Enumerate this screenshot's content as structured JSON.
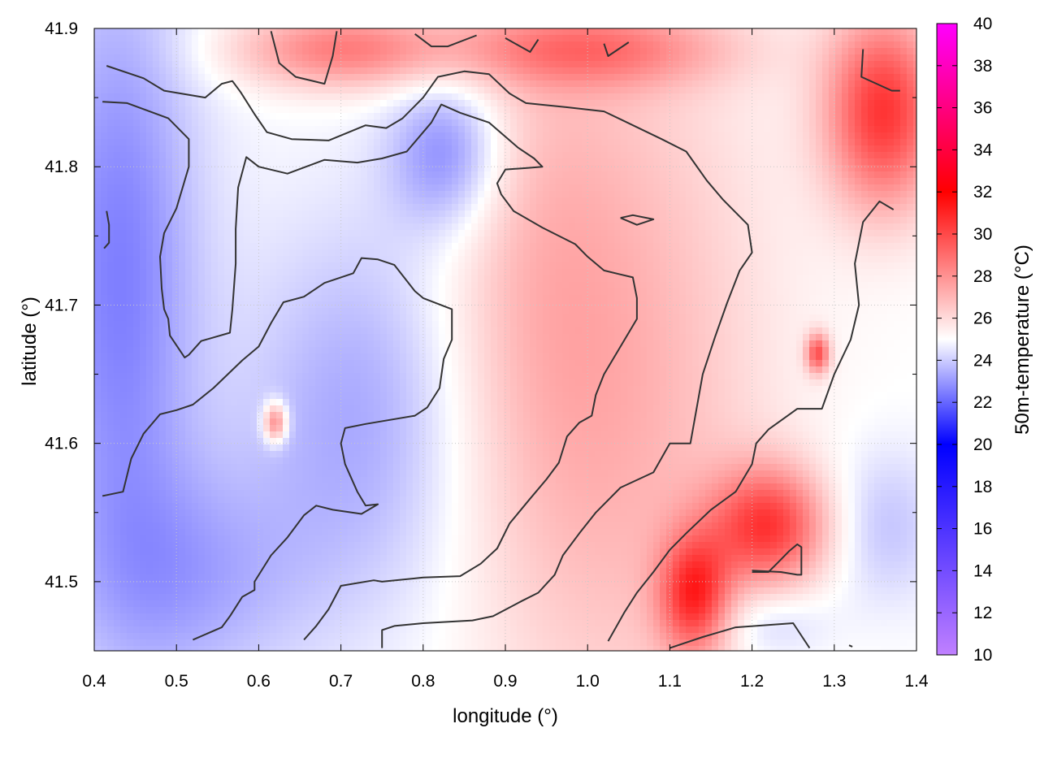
{
  "chart_data": {
    "type": "heatmap",
    "xlabel": "longitude (°)",
    "ylabel": "latitude (°)",
    "colorbar_label": "50m-temperature (°C)",
    "xlim": [
      0.4,
      1.4
    ],
    "ylim": [
      41.45,
      41.9
    ],
    "x_ticks": [
      0.4,
      0.5,
      0.6,
      0.7,
      0.8,
      0.9,
      1.0,
      1.1,
      1.2,
      1.3,
      1.4
    ],
    "x_tick_labels": [
      "0.4",
      "0.5",
      "0.6",
      "0.7",
      "0.8",
      "0.9",
      "1.0",
      "1.1",
      "1.2",
      "1.3",
      "1.4"
    ],
    "y_ticks": [
      41.5,
      41.6,
      41.7,
      41.8,
      41.9
    ],
    "y_tick_labels": [
      "41.5",
      "41.6",
      "41.7",
      "41.8",
      "41.9"
    ],
    "colorbar_range": [
      10,
      40
    ],
    "colorbar_ticks": [
      10,
      12,
      14,
      16,
      18,
      20,
      22,
      24,
      26,
      28,
      30,
      32,
      34,
      36,
      38,
      40
    ],
    "colorbar_tick_labels": [
      "10",
      "12",
      "14",
      "16",
      "18",
      "20",
      "22",
      "24",
      "26",
      "28",
      "30",
      "32",
      "34",
      "36",
      "38",
      "40"
    ],
    "colormap": [
      {
        "t": 10,
        "color": "#c080ff"
      },
      {
        "t": 20,
        "color": "#0000ff"
      },
      {
        "t": 25,
        "color": "#ffffff"
      },
      {
        "t": 32,
        "color": "#ff0000"
      },
      {
        "t": 40,
        "color": "#ff00ff"
      }
    ],
    "grid": true,
    "grid_color": "#c8c8c8",
    "contour_color": "#333333",
    "temperature_regions": [
      {
        "name": "west-cool",
        "lon": 0.43,
        "lat": 41.72,
        "t": 22.5,
        "sx": 0.07,
        "sy": 0.17
      },
      {
        "name": "center-cool",
        "lon": 0.72,
        "lat": 41.62,
        "t": 23.3,
        "sx": 0.1,
        "sy": 0.1
      },
      {
        "name": "north-cool",
        "lon": 0.83,
        "lat": 41.81,
        "t": 22.5,
        "sx": 0.05,
        "sy": 0.04
      },
      {
        "name": "southwest-cool",
        "lon": 0.52,
        "lat": 41.5,
        "t": 23.5,
        "sx": 0.1,
        "sy": 0.06
      },
      {
        "name": "east-band-warm",
        "lon": 1.05,
        "lat": 41.64,
        "t": 27.0,
        "sx": 0.12,
        "sy": 0.2
      },
      {
        "name": "mid-warm",
        "lon": 0.93,
        "lat": 41.72,
        "t": 26.2,
        "sx": 0.08,
        "sy": 0.15
      },
      {
        "name": "northeast-hot",
        "lon": 1.36,
        "lat": 41.84,
        "t": 30.5,
        "sx": 0.05,
        "sy": 0.05
      },
      {
        "name": "north-top-warm",
        "lon": 0.7,
        "lat": 41.885,
        "t": 28.5,
        "sx": 0.09,
        "sy": 0.02
      },
      {
        "name": "north-top-warm-2",
        "lon": 1.0,
        "lat": 41.885,
        "t": 28.0,
        "sx": 0.12,
        "sy": 0.02
      },
      {
        "name": "southeast-hot",
        "lon": 1.22,
        "lat": 41.54,
        "t": 30.0,
        "sx": 0.05,
        "sy": 0.03
      },
      {
        "name": "south-hot",
        "lon": 1.13,
        "lat": 41.49,
        "t": 30.0,
        "sx": 0.03,
        "sy": 0.03
      },
      {
        "name": "east-cool",
        "lon": 1.36,
        "lat": 41.54,
        "t": 23.8,
        "sx": 0.05,
        "sy": 0.04
      },
      {
        "name": "se-cool",
        "lon": 1.22,
        "lat": 41.47,
        "t": 23.8,
        "sx": 0.05,
        "sy": 0.02
      },
      {
        "name": "spot-warm",
        "lon": 0.62,
        "lat": 41.615,
        "t": 29.0,
        "sx": 0.01,
        "sy": 0.01
      },
      {
        "name": "spot-warm-2",
        "lon": 1.28,
        "lat": 41.665,
        "t": 29.5,
        "sx": 0.01,
        "sy": 0.01
      }
    ],
    "contours": [
      [
        [
          0.415,
          41.873
        ],
        [
          0.46,
          41.864
        ],
        [
          0.485,
          41.855
        ],
        [
          0.535,
          41.85
        ],
        [
          0.555,
          41.86
        ],
        [
          0.568,
          41.862
        ],
        [
          0.578,
          41.854
        ],
        [
          0.595,
          41.838
        ],
        [
          0.61,
          41.825
        ],
        [
          0.64,
          41.82
        ],
        [
          0.685,
          41.819
        ],
        [
          0.73,
          41.83
        ],
        [
          0.755,
          41.828
        ],
        [
          0.775,
          41.835
        ],
        [
          0.8,
          41.85
        ],
        [
          0.818,
          41.865
        ],
        [
          0.85,
          41.869
        ],
        [
          0.88,
          41.867
        ],
        [
          0.905,
          41.853
        ],
        [
          0.925,
          41.846
        ],
        [
          0.975,
          41.843
        ],
        [
          1.02,
          41.84
        ],
        [
          1.09,
          41.82
        ],
        [
          1.12,
          41.811
        ],
        [
          1.145,
          41.79
        ],
        [
          1.165,
          41.776
        ],
        [
          1.195,
          41.758
        ],
        [
          1.2,
          41.738
        ],
        [
          1.185,
          41.725
        ],
        [
          1.17,
          41.702
        ],
        [
          1.155,
          41.677
        ],
        [
          1.14,
          41.65
        ],
        [
          1.125,
          41.6
        ],
        [
          1.1,
          41.6
        ],
        [
          1.08,
          41.579
        ],
        [
          1.04,
          41.568
        ],
        [
          1.01,
          41.55
        ],
        [
          0.99,
          41.535
        ],
        [
          0.97,
          41.519
        ],
        [
          0.96,
          41.505
        ],
        [
          0.94,
          41.492
        ],
        [
          0.92,
          41.486
        ],
        [
          0.885,
          41.475
        ],
        [
          0.86,
          41.472
        ],
        [
          0.8,
          41.47
        ],
        [
          0.765,
          41.468
        ],
        [
          0.75,
          41.465
        ],
        [
          0.75,
          41.452
        ]
      ],
      [
        [
          0.41,
          41.847
        ],
        [
          0.44,
          41.846
        ],
        [
          0.49,
          41.835
        ],
        [
          0.515,
          41.82
        ],
        [
          0.515,
          41.8
        ],
        [
          0.5,
          41.77
        ],
        [
          0.485,
          41.752
        ],
        [
          0.48,
          41.735
        ],
        [
          0.482,
          41.712
        ],
        [
          0.485,
          41.697
        ],
        [
          0.49,
          41.69
        ],
        [
          0.492,
          41.678
        ],
        [
          0.51,
          41.662
        ],
        [
          0.515,
          41.664
        ],
        [
          0.53,
          41.674
        ],
        [
          0.565,
          41.68
        ],
        [
          0.568,
          41.697
        ],
        [
          0.572,
          41.73
        ],
        [
          0.572,
          41.755
        ],
        [
          0.575,
          41.785
        ],
        [
          0.585,
          41.807
        ],
        [
          0.6,
          41.8
        ],
        [
          0.635,
          41.795
        ],
        [
          0.68,
          41.805
        ],
        [
          0.72,
          41.803
        ],
        [
          0.75,
          41.806
        ],
        [
          0.78,
          41.811
        ],
        [
          0.81,
          41.832
        ],
        [
          0.822,
          41.845
        ],
        [
          0.845,
          41.839
        ],
        [
          0.88,
          41.832
        ],
        [
          0.915,
          41.814
        ],
        [
          0.935,
          41.806
        ],
        [
          0.945,
          41.8
        ],
        [
          0.925,
          41.799
        ],
        [
          0.9,
          41.798
        ],
        [
          0.89,
          41.788
        ],
        [
          0.895,
          41.78
        ],
        [
          0.91,
          41.768
        ],
        [
          0.945,
          41.756
        ],
        [
          0.985,
          41.744
        ],
        [
          1.0,
          41.735
        ],
        [
          1.02,
          41.725
        ],
        [
          1.055,
          41.72
        ],
        [
          1.06,
          41.705
        ],
        [
          1.06,
          41.69
        ],
        [
          1.04,
          41.67
        ],
        [
          1.02,
          41.65
        ],
        [
          1.01,
          41.635
        ],
        [
          1.005,
          41.62
        ],
        [
          0.99,
          41.615
        ],
        [
          0.975,
          41.605
        ],
        [
          0.965,
          41.586
        ],
        [
          0.95,
          41.574
        ],
        [
          0.93,
          41.56
        ],
        [
          0.905,
          41.542
        ],
        [
          0.89,
          41.524
        ],
        [
          0.87,
          41.513
        ],
        [
          0.845,
          41.504
        ],
        [
          0.8,
          41.503
        ],
        [
          0.75,
          41.5
        ],
        [
          0.74,
          41.501
        ],
        [
          0.7,
          41.497
        ],
        [
          0.685,
          41.48
        ],
        [
          0.67,
          41.468
        ],
        [
          0.655,
          41.458
        ]
      ],
      [
        [
          0.41,
          41.562
        ],
        [
          0.435,
          41.565
        ],
        [
          0.445,
          41.589
        ],
        [
          0.46,
          41.607
        ],
        [
          0.48,
          41.621
        ],
        [
          0.5,
          41.624
        ],
        [
          0.52,
          41.628
        ],
        [
          0.545,
          41.64
        ],
        [
          0.58,
          41.66
        ],
        [
          0.6,
          41.67
        ],
        [
          0.615,
          41.687
        ],
        [
          0.63,
          41.702
        ],
        [
          0.655,
          41.706
        ],
        [
          0.68,
          41.716
        ],
        [
          0.715,
          41.723
        ],
        [
          0.725,
          41.734
        ],
        [
          0.745,
          41.733
        ],
        [
          0.765,
          41.729
        ],
        [
          0.79,
          41.71
        ],
        [
          0.8,
          41.705
        ],
        [
          0.835,
          41.697
        ],
        [
          0.835,
          41.675
        ],
        [
          0.825,
          41.661
        ],
        [
          0.82,
          41.64
        ],
        [
          0.805,
          41.626
        ],
        [
          0.79,
          41.62
        ],
        [
          0.73,
          41.614
        ],
        [
          0.705,
          41.611
        ],
        [
          0.7,
          41.6
        ],
        [
          0.705,
          41.585
        ],
        [
          0.72,
          41.565
        ],
        [
          0.73,
          41.555
        ],
        [
          0.745,
          41.556
        ],
        [
          0.725,
          41.549
        ],
        [
          0.69,
          41.552
        ],
        [
          0.67,
          41.555
        ],
        [
          0.655,
          41.548
        ],
        [
          0.635,
          41.532
        ],
        [
          0.615,
          41.519
        ],
        [
          0.595,
          41.5
        ],
        [
          0.595,
          41.494
        ],
        [
          0.58,
          41.489
        ],
        [
          0.565,
          41.475
        ],
        [
          0.555,
          41.467
        ],
        [
          0.52,
          41.458
        ]
      ],
      [
        [
          1.372,
          41.769
        ],
        [
          1.355,
          41.775
        ],
        [
          1.335,
          41.76
        ],
        [
          1.325,
          41.73
        ],
        [
          1.33,
          41.7
        ],
        [
          1.32,
          41.675
        ],
        [
          1.308,
          41.66
        ],
        [
          1.3,
          41.65
        ],
        [
          1.285,
          41.625
        ],
        [
          1.255,
          41.625
        ],
        [
          1.22,
          41.61
        ],
        [
          1.205,
          41.6
        ],
        [
          1.2,
          41.585
        ],
        [
          1.18,
          41.565
        ],
        [
          1.15,
          41.552
        ],
        [
          1.12,
          41.535
        ],
        [
          1.1,
          41.523
        ],
        [
          1.08,
          41.507
        ],
        [
          1.06,
          41.492
        ],
        [
          1.045,
          41.478
        ],
        [
          1.025,
          41.457
        ]
      ],
      [
        [
          0.615,
          41.898
        ],
        [
          0.625,
          41.875
        ],
        [
          0.645,
          41.865
        ],
        [
          0.68,
          41.86
        ],
        [
          0.69,
          41.88
        ],
        [
          0.695,
          41.898
        ]
      ],
      [
        [
          0.79,
          41.896
        ],
        [
          0.81,
          41.887
        ],
        [
          0.83,
          41.887
        ],
        [
          0.865,
          41.895
        ]
      ],
      [
        [
          0.9,
          41.893
        ],
        [
          0.915,
          41.888
        ],
        [
          0.93,
          41.883
        ],
        [
          0.94,
          41.892
        ]
      ],
      [
        [
          1.02,
          41.889
        ],
        [
          1.025,
          41.88
        ],
        [
          1.05,
          41.89
        ]
      ],
      [
        [
          1.335,
          41.885
        ],
        [
          1.333,
          41.865
        ],
        [
          1.37,
          41.855
        ],
        [
          1.38,
          41.855
        ]
      ],
      [
        [
          1.2,
          41.507
        ],
        [
          1.22,
          41.507
        ],
        [
          1.23,
          41.513
        ],
        [
          1.245,
          41.522
        ],
        [
          1.255,
          41.527
        ],
        [
          1.26,
          41.525
        ],
        [
          1.26,
          41.505
        ],
        [
          1.255,
          41.505
        ],
        [
          1.235,
          41.507
        ],
        [
          1.2,
          41.508
        ]
      ],
      [
        [
          1.04,
          41.763
        ],
        [
          1.055,
          41.765
        ],
        [
          1.08,
          41.762
        ],
        [
          1.06,
          41.758
        ],
        [
          1.04,
          41.763
        ]
      ],
      [
        [
          0.415,
          41.768
        ],
        [
          0.418,
          41.758
        ],
        [
          0.418,
          41.745
        ],
        [
          0.412,
          41.741
        ]
      ],
      [
        [
          1.1,
          41.452
        ],
        [
          1.14,
          41.46
        ],
        [
          1.18,
          41.467
        ],
        [
          1.25,
          41.47
        ],
        [
          1.27,
          41.452
        ]
      ],
      [
        [
          1.318,
          41.454
        ],
        [
          1.322,
          41.453
        ]
      ]
    ]
  }
}
